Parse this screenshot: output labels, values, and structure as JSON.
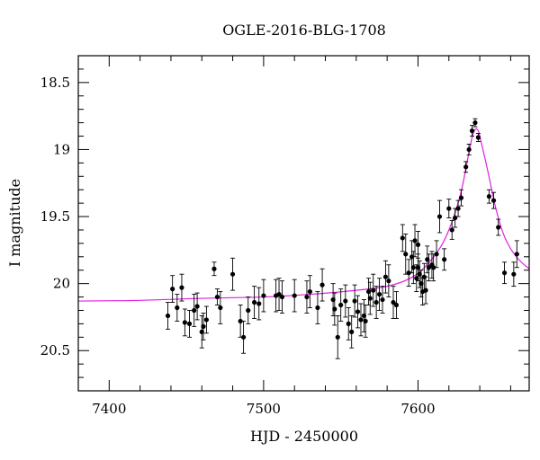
{
  "chart_data": {
    "type": "scatter",
    "title": "OGLE-2016-BLG-1708",
    "xlabel": "HJD - 2450000",
    "ylabel": "I magnitude",
    "xlim": [
      7380,
      7672
    ],
    "ylim": [
      20.8,
      18.3
    ],
    "y_inverted": true,
    "xticks": [
      7400,
      7500,
      7600
    ],
    "yticks": [
      "18.5",
      "19",
      "19.5",
      "20",
      "20.5"
    ],
    "grid": false,
    "colors": {
      "points": "#000000",
      "model": "#e020e0",
      "axes": "#000000"
    },
    "series": [
      {
        "kind": "observations",
        "x": [
          7438,
          7441,
          7444,
          7447,
          7449,
          7452,
          7455,
          7457,
          7460,
          7461,
          7463,
          7468,
          7470,
          7472,
          7480,
          7485,
          7487,
          7490,
          7494,
          7497,
          7500,
          7508,
          7510,
          7512,
          7520,
          7528,
          7530,
          7535,
          7538,
          7545,
          7546,
          7548,
          7550,
          7553,
          7555,
          7557,
          7559,
          7561,
          7563,
          7565,
          7566,
          7568,
          7569,
          7571,
          7573,
          7575,
          7577,
          7579,
          7581,
          7584,
          7586,
          7590,
          7592,
          7594,
          7596,
          7597,
          7598,
          7599,
          7600,
          7600,
          7601,
          7602,
          7603,
          7604,
          7605,
          7606,
          7607,
          7609,
          7610,
          7612,
          7614,
          7617,
          7620,
          7622,
          7624,
          7626,
          7628,
          7631,
          7633,
          7635,
          7637,
          7639,
          7646,
          7649,
          7652,
          7656,
          7662,
          7664
        ],
        "y": [
          20.24,
          20.04,
          20.18,
          20.03,
          20.29,
          20.3,
          20.2,
          20.17,
          20.36,
          20.32,
          20.27,
          19.89,
          20.1,
          20.18,
          19.93,
          20.28,
          20.4,
          20.2,
          20.14,
          20.15,
          20.09,
          20.09,
          20.08,
          20.1,
          20.09,
          20.1,
          20.06,
          20.18,
          20.01,
          20.12,
          20.19,
          20.4,
          20.16,
          20.13,
          20.3,
          20.36,
          20.13,
          20.21,
          20.27,
          20.24,
          20.28,
          20.06,
          20.11,
          20.05,
          20.14,
          20.08,
          20.12,
          19.95,
          19.98,
          20.14,
          20.16,
          19.66,
          19.78,
          19.92,
          19.8,
          19.88,
          19.68,
          19.96,
          19.71,
          19.88,
          19.93,
          20.0,
          20.06,
          19.95,
          20.05,
          19.82,
          19.88,
          19.86,
          19.88,
          19.78,
          19.5,
          19.82,
          19.44,
          19.6,
          19.51,
          19.44,
          19.36,
          19.13,
          19.0,
          18.86,
          18.8,
          18.91,
          19.35,
          19.38,
          19.58,
          19.92,
          19.93,
          19.78
        ],
        "err": [
          0.1,
          0.1,
          0.1,
          0.1,
          0.1,
          0.1,
          0.12,
          0.1,
          0.12,
          0.1,
          0.1,
          0.05,
          0.06,
          0.12,
          0.12,
          0.12,
          0.12,
          0.1,
          0.12,
          0.12,
          0.12,
          0.12,
          0.12,
          0.12,
          0.12,
          0.12,
          0.12,
          0.12,
          0.12,
          0.12,
          0.12,
          0.16,
          0.12,
          0.12,
          0.12,
          0.12,
          0.12,
          0.12,
          0.12,
          0.12,
          0.12,
          0.1,
          0.12,
          0.12,
          0.12,
          0.12,
          0.1,
          0.12,
          0.12,
          0.12,
          0.1,
          0.1,
          0.15,
          0.1,
          0.12,
          0.12,
          0.12,
          0.1,
          0.1,
          0.1,
          0.1,
          0.1,
          0.1,
          0.1,
          0.1,
          0.1,
          0.1,
          0.1,
          0.1,
          0.1,
          0.12,
          0.08,
          0.07,
          0.07,
          0.07,
          0.06,
          0.06,
          0.04,
          0.04,
          0.04,
          0.03,
          0.03,
          0.05,
          0.06,
          0.06,
          0.08,
          0.09,
          0.1
        ]
      },
      {
        "kind": "model",
        "x": [
          7380,
          7420,
          7460,
          7500,
          7530,
          7560,
          7580,
          7595,
          7605,
          7615,
          7622,
          7628,
          7632,
          7635,
          7637,
          7639,
          7641,
          7645,
          7650,
          7655,
          7660,
          7666,
          7672
        ],
        "y": [
          20.13,
          20.125,
          20.11,
          20.1,
          20.08,
          20.05,
          20.02,
          19.96,
          19.87,
          19.72,
          19.54,
          19.31,
          19.08,
          18.91,
          18.85,
          18.86,
          18.95,
          19.15,
          19.42,
          19.62,
          19.74,
          19.83,
          19.89
        ]
      }
    ]
  }
}
